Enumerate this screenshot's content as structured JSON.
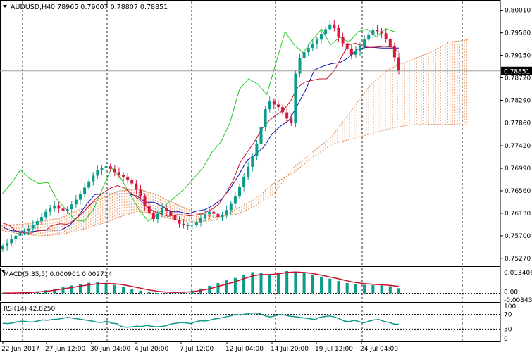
{
  "chart_data": [
    {
      "type": "candlestick",
      "symbol": "AUDUSD,H4",
      "ohlc_header": "0.78965 0.79007 0.78807 0.78851",
      "current_price": 0.78851,
      "current_price_label": "0.78851",
      "ylim": [
        0.752,
        0.801
      ],
      "y_ticks": [
        "0.80010",
        "0.79580",
        "0.79150",
        "0.78720",
        "0.78290",
        "0.77860",
        "0.77420",
        "0.76990",
        "0.76560",
        "0.76130",
        "0.75700",
        "0.75270"
      ],
      "x_ticks": [
        "22 Jun 2017",
        "27 Jun 12:00",
        "30 Jun 04:00",
        "4 Jul 20:00",
        "7 Jul 12:00",
        "12 Jul 04:00",
        "14 Jul 20:00",
        "19 Jul 12:00",
        "24 Jul 04:00"
      ],
      "colors": {
        "bull": "#0c9a8a",
        "bear": "#d6193f",
        "fast_ma": "#c8102e",
        "slow_ma": "#1010b0",
        "lagging": "#22cc22",
        "cloud": "#e0874a",
        "price_line": "#a0a0a0",
        "grid": "#000000"
      },
      "close": [
        0.755,
        0.7556,
        0.7563,
        0.757,
        0.7576,
        0.7579,
        0.7584,
        0.759,
        0.7598,
        0.7606,
        0.7616,
        0.7622,
        0.7628,
        0.7622,
        0.7617,
        0.7621,
        0.763,
        0.7639,
        0.765,
        0.7662,
        0.7674,
        0.7685,
        0.7695,
        0.7699,
        0.7703,
        0.7698,
        0.7692,
        0.7686,
        0.7683,
        0.7677,
        0.767,
        0.7658,
        0.7645,
        0.7627,
        0.7614,
        0.7602,
        0.7612,
        0.7623,
        0.7618,
        0.7609,
        0.76,
        0.7593,
        0.759,
        0.759,
        0.7591,
        0.7596,
        0.7604,
        0.7611,
        0.7616,
        0.7612,
        0.7606,
        0.7609,
        0.7619,
        0.7631,
        0.7645,
        0.7663,
        0.7683,
        0.7702,
        0.7722,
        0.7745,
        0.7778,
        0.7812,
        0.7827,
        0.7821,
        0.7816,
        0.7806,
        0.7794,
        0.7786,
        0.788,
        0.791,
        0.7921,
        0.7929,
        0.7937,
        0.7945,
        0.7956,
        0.7965,
        0.7974,
        0.7967,
        0.795,
        0.7938,
        0.7928,
        0.7916,
        0.7923,
        0.7933,
        0.7945,
        0.7955,
        0.7964,
        0.7961,
        0.7957,
        0.7946,
        0.7932,
        0.7911,
        0.7885
      ],
      "fast_ma": [
        0.7595,
        0.759,
        0.7578,
        0.7575,
        0.7575,
        0.758,
        0.758,
        0.759,
        0.7593,
        0.7592,
        0.76,
        0.7612,
        0.7626,
        0.7641,
        0.7652,
        0.7661,
        0.7666,
        0.7661,
        0.765,
        0.764,
        0.7626,
        0.7617,
        0.7612,
        0.7607,
        0.761,
        0.761,
        0.7608,
        0.761,
        0.7613,
        0.762,
        0.763,
        0.765,
        0.7675,
        0.771,
        0.773,
        0.775,
        0.7774,
        0.779,
        0.7801,
        0.781,
        0.7828,
        0.7854,
        0.7864,
        0.7867,
        0.787,
        0.787,
        0.7885,
        0.791,
        0.7935,
        0.7938,
        0.7932,
        0.793,
        0.7931,
        0.7932,
        0.7931,
        0.7922
      ],
      "slow_ma": [
        0.7587,
        0.758,
        0.7578,
        0.7577,
        0.7579,
        0.7581,
        0.7581,
        0.7581,
        0.759,
        0.7607,
        0.763,
        0.7649,
        0.765,
        0.765,
        0.765,
        0.765,
        0.7646,
        0.7634,
        0.7634,
        0.7626,
        0.7616,
        0.7616,
        0.7612,
        0.7617,
        0.762,
        0.7628,
        0.764,
        0.766,
        0.7685,
        0.7714,
        0.7725,
        0.774,
        0.7765,
        0.778,
        0.7791,
        0.782,
        0.785,
        0.7887,
        0.7894,
        0.7899,
        0.7901,
        0.791,
        0.7926,
        0.793,
        0.793,
        0.7929,
        0.7929,
        0.7929
      ],
      "lagging": [
        0.765,
        0.767,
        0.7696,
        0.768,
        0.767,
        0.7672,
        0.764,
        0.762,
        0.76,
        0.7598,
        0.762,
        0.766,
        0.77,
        0.768,
        0.765,
        0.762,
        0.7598,
        0.761,
        0.763,
        0.7645,
        0.766,
        0.768,
        0.77,
        0.773,
        0.775,
        0.7788,
        0.785,
        0.787,
        0.786,
        0.784,
        0.79,
        0.796,
        0.7935,
        0.792,
        0.7945,
        0.7965,
        0.7935,
        0.795,
        0.794,
        0.796,
        0.7965,
        0.795,
        0.7966,
        0.796
      ],
      "cloud_a": [
        0.759,
        0.7592,
        0.7598,
        0.7604,
        0.762,
        0.764,
        0.7656,
        0.766,
        0.7648,
        0.763,
        0.7614,
        0.7606,
        0.761,
        0.7626,
        0.765,
        0.77,
        0.773,
        0.776,
        0.781,
        0.786,
        0.789,
        0.7905,
        0.792,
        0.794,
        0.7945
      ],
      "cloud_b": [
        0.758,
        0.7573,
        0.757,
        0.7572,
        0.7581,
        0.7591,
        0.7605,
        0.7617,
        0.7609,
        0.76,
        0.7596,
        0.76,
        0.762,
        0.764,
        0.767,
        0.769,
        0.772,
        0.7745,
        0.7755,
        0.7765,
        0.7775,
        0.7782,
        0.7783,
        0.7783,
        0.7782
      ],
      "macd_label": "MACD(5,35,5) 0.000901 0.002714",
      "macd_ticks": [
        "0.013406",
        "0.00",
        "-0.003439"
      ],
      "macd_ylim": [
        -0.003439,
        0.013406
      ],
      "macd_hist": [
        0.0003,
        0.0003,
        0.0005,
        0.0008,
        0.0012,
        0.0018,
        0.0026,
        0.0036,
        0.0046,
        0.0056,
        0.0062,
        0.0066,
        0.006,
        0.005,
        0.0038,
        0.0026,
        0.0016,
        0.0006,
        0.0002,
        0.0002,
        0.0004,
        0.0008,
        0.0016,
        0.0028,
        0.0044,
        0.006,
        0.0076,
        0.009,
        0.011,
        0.0124,
        0.0118,
        0.0108,
        0.012,
        0.013,
        0.0128,
        0.012,
        0.011,
        0.0098,
        0.0086,
        0.0072,
        0.006,
        0.0052,
        0.005,
        0.0048,
        0.0046,
        0.0042,
        0.003
      ],
      "macd_signal": [
        0.0002,
        0.0002,
        0.0003,
        0.0005,
        0.0008,
        0.0012,
        0.0018,
        0.0026,
        0.0034,
        0.0043,
        0.005,
        0.0056,
        0.0058,
        0.0056,
        0.005,
        0.004,
        0.003,
        0.002,
        0.0012,
        0.0008,
        0.0006,
        0.0007,
        0.001,
        0.0017,
        0.0027,
        0.004,
        0.0054,
        0.0068,
        0.0085,
        0.0102,
        0.011,
        0.011,
        0.0114,
        0.0122,
        0.0125,
        0.0122,
        0.0116,
        0.0107,
        0.0096,
        0.0085,
        0.0073,
        0.0063,
        0.0057,
        0.0053,
        0.005,
        0.0047,
        0.004
      ],
      "rsi_label": "RSI(14) 42.8250",
      "rsi_ticks": [
        "100",
        "70",
        "30",
        "0"
      ],
      "rsi_ylim": [
        0,
        100
      ],
      "rsi_levels": [
        70,
        30
      ],
      "rsi_values": [
        46,
        45,
        47,
        50,
        52,
        50,
        49,
        52,
        55,
        54,
        56,
        57,
        59,
        62,
        60,
        58,
        56,
        54,
        52,
        49,
        48,
        52,
        46,
        45,
        37,
        35,
        36,
        38,
        37,
        40,
        38,
        36,
        37,
        39,
        44,
        46,
        48,
        47,
        45,
        50,
        53,
        52,
        55,
        58,
        60,
        63,
        66,
        70,
        68,
        71,
        73,
        74,
        72,
        66,
        63,
        66,
        70,
        68,
        65,
        64,
        62,
        60,
        58,
        56,
        62,
        64,
        66,
        63,
        58,
        52,
        50,
        54,
        50,
        47,
        52,
        55,
        56,
        51,
        48,
        44,
        43
      ]
    }
  ]
}
